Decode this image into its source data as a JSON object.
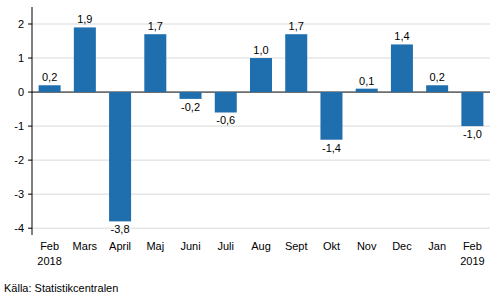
{
  "chart_data": {
    "type": "bar",
    "categories": [
      "Feb\n2018",
      "Mars",
      "April",
      "Maj",
      "Juni",
      "Juli",
      "Aug",
      "Sept",
      "Okt",
      "Nov",
      "Dec",
      "Jan",
      "Feb\n2019"
    ],
    "values": [
      0.2,
      1.9,
      -3.8,
      1.7,
      -0.2,
      -0.6,
      1.0,
      1.7,
      -1.4,
      0.1,
      1.4,
      0.2,
      -1.0
    ],
    "value_labels": [
      "0,2",
      "1,9",
      "-3,8",
      "1,7",
      "-0,2",
      "-0,6",
      "1,0",
      "1,7",
      "-1,4",
      "0,1",
      "1,4",
      "0,2",
      "-1,0"
    ],
    "data_labels": true,
    "color": "#1f6eae",
    "ylim": [
      -4.2,
      2.5
    ],
    "yticks": [
      -4,
      -3,
      -2,
      -1,
      0,
      1,
      2
    ],
    "grid": true,
    "annotations": [
      "Källa: Statistikcentralen"
    ]
  }
}
